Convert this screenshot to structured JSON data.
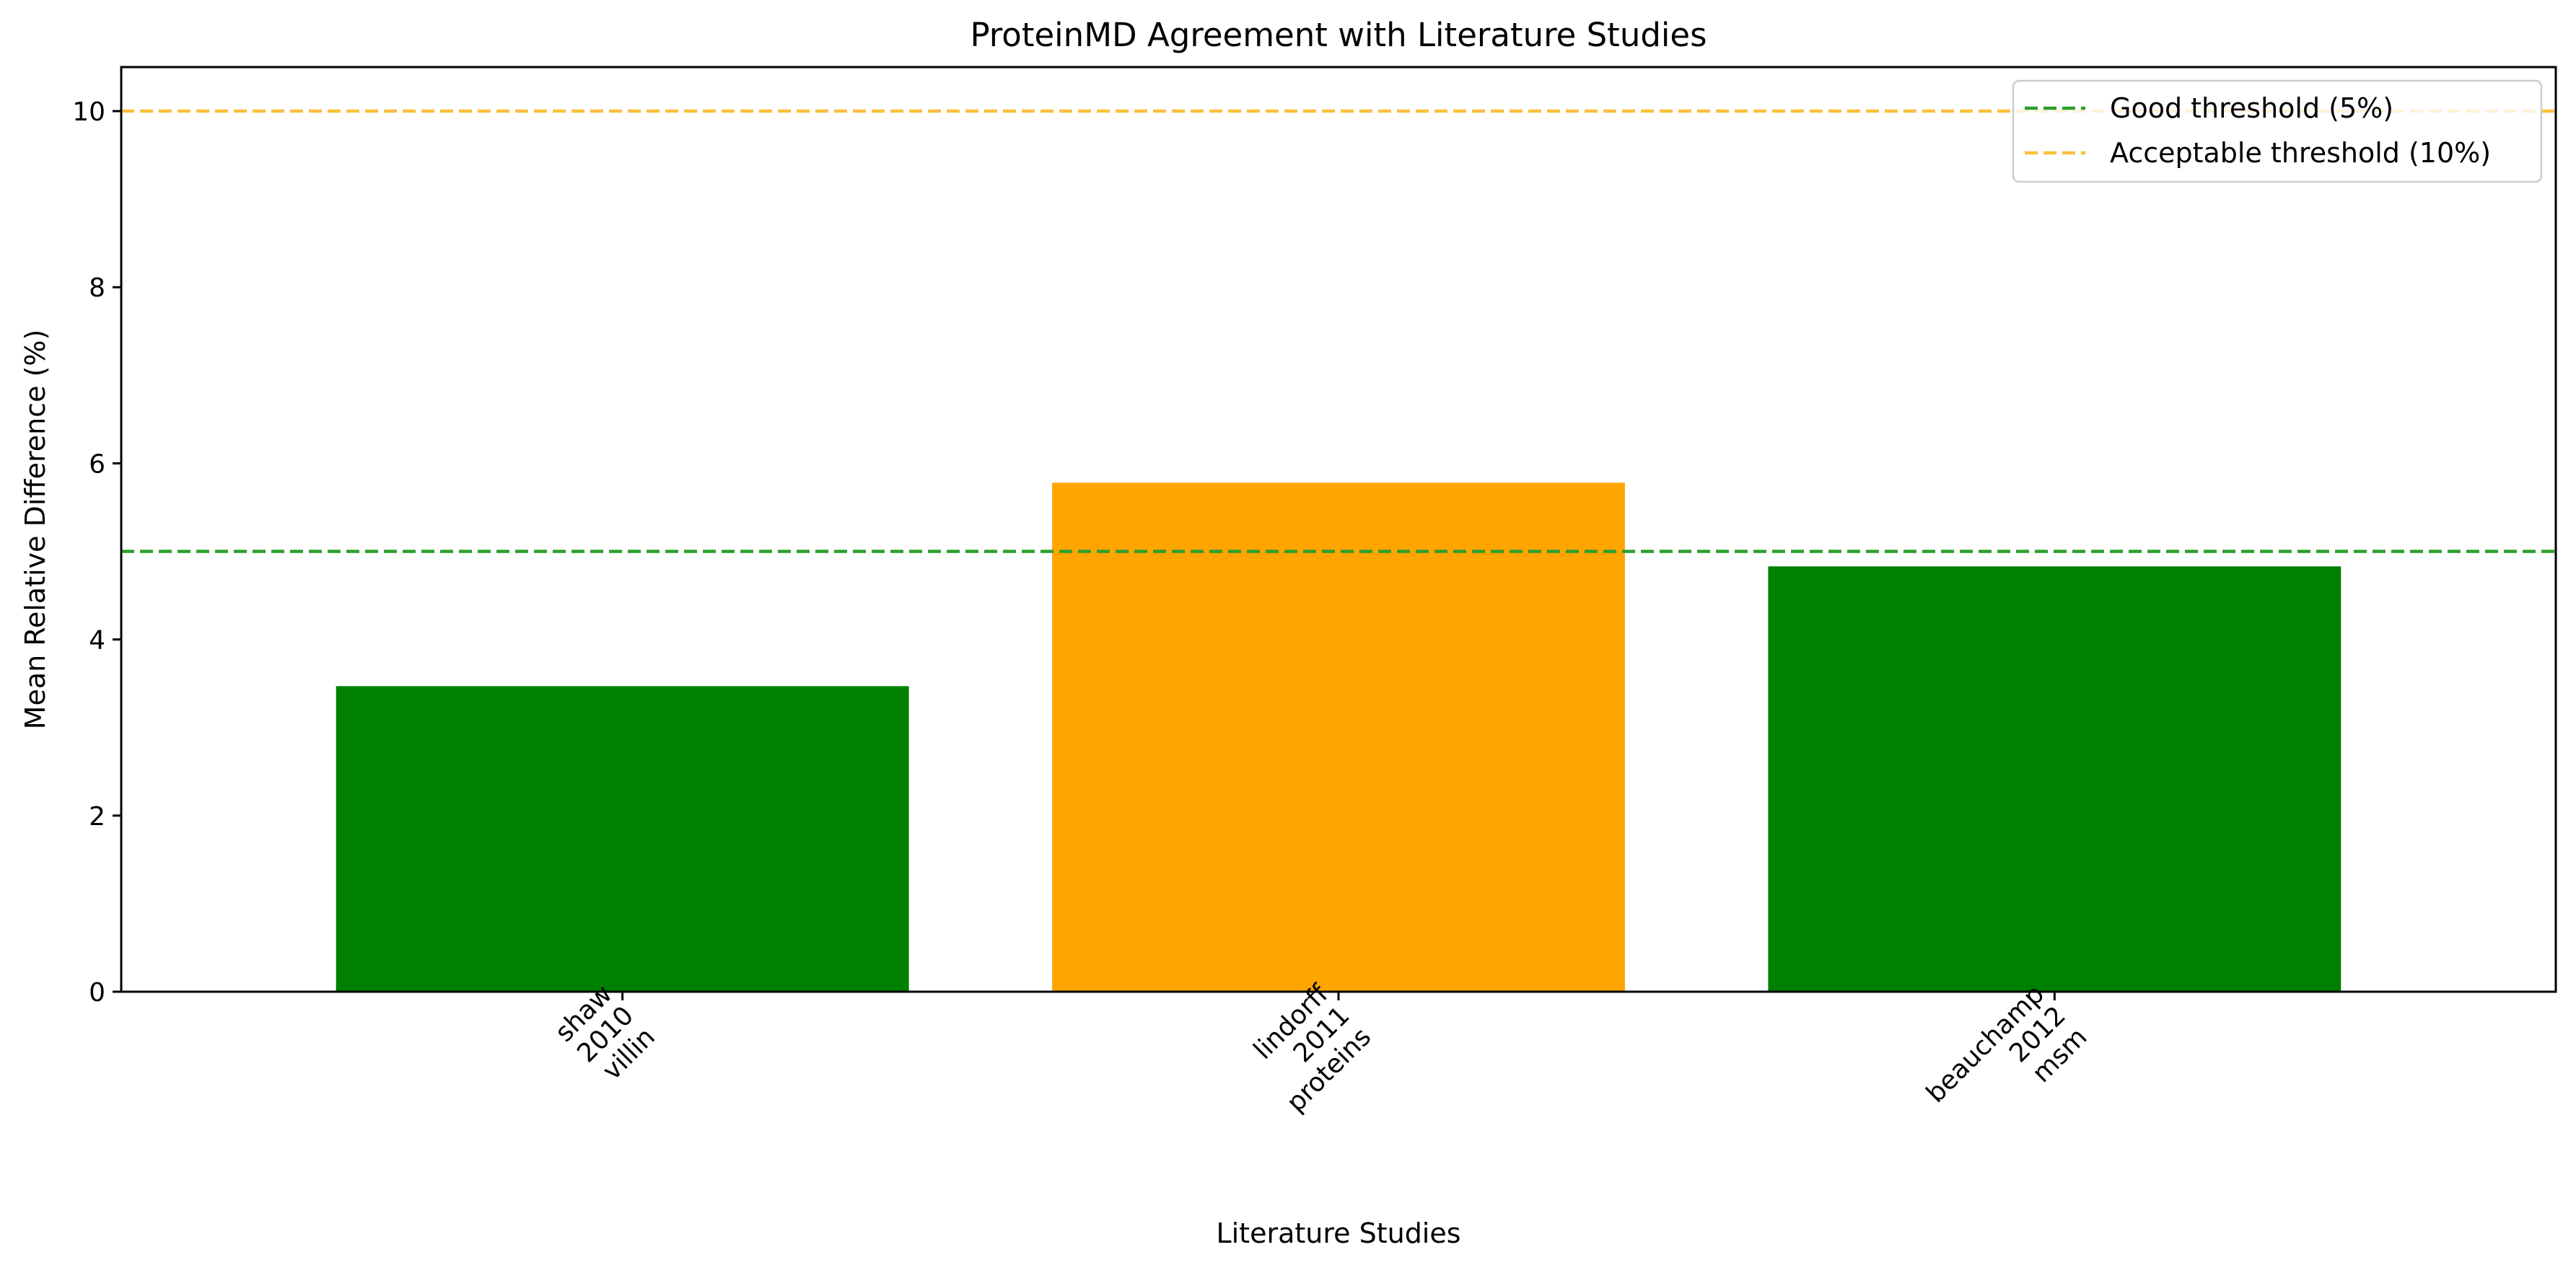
{
  "chart_data": {
    "type": "bar",
    "title": "ProteinMD Agreement with Literature Studies",
    "xlabel": "Literature Studies",
    "ylabel": "Mean Relative Difference (%)",
    "categories": [
      [
        "shaw",
        "2010",
        "villin"
      ],
      [
        "lindorff",
        "2011",
        "proteins"
      ],
      [
        "beauchamp",
        "2012",
        "msm"
      ]
    ],
    "values": [
      3.47,
      5.78,
      4.83
    ],
    "bar_colors": [
      "#008000",
      "#ffa500",
      "#008000"
    ],
    "ylim": [
      0,
      10.5
    ],
    "yticks": [
      0,
      2,
      4,
      6,
      8,
      10
    ],
    "ytick_labels": [
      "0",
      "2",
      "4",
      "6",
      "8",
      "10"
    ],
    "grid": false,
    "legend_position": "top-right",
    "thresholds": [
      {
        "label": "Good threshold (5%)",
        "value": 5,
        "color": "#2ca02c"
      },
      {
        "label": "Acceptable threshold (10%)",
        "value": 10,
        "color": "#fbbf3f"
      }
    ]
  }
}
